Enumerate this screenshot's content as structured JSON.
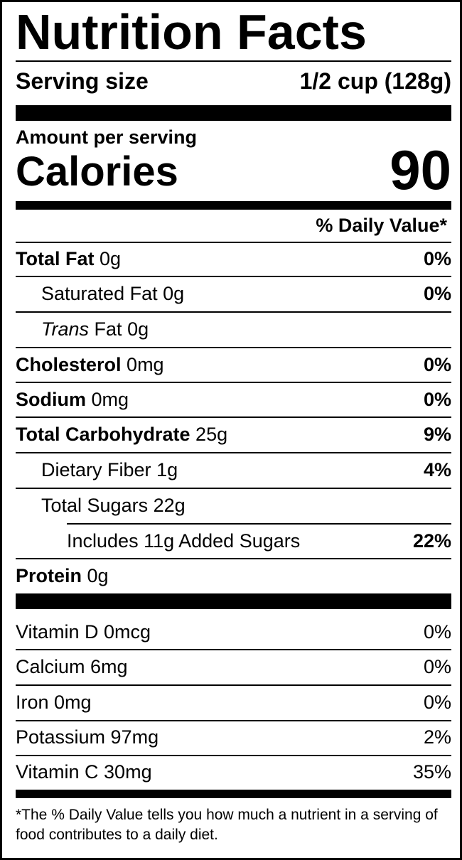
{
  "title": "Nutrition Facts",
  "serving": {
    "label": "Serving size",
    "value": "1/2 cup (128g)"
  },
  "amount_per_serving": "Amount per serving",
  "calories": {
    "label": "Calories",
    "value": "90"
  },
  "daily_value_header": "% Daily Value*",
  "nutrients": [
    {
      "name": "Total Fat",
      "amount": "0g",
      "dv": "0%"
    },
    {
      "name": "Saturated Fat",
      "amount": "0g",
      "dv": "0%"
    },
    {
      "name_italic": "Trans",
      "name": "Fat",
      "amount": "0g"
    },
    {
      "name": "Cholesterol",
      "amount": "0mg",
      "dv": "0%"
    },
    {
      "name": "Sodium",
      "amount": "0mg",
      "dv": "0%"
    },
    {
      "name": "Total Carbohydrate",
      "amount": "25g",
      "dv": "9%"
    },
    {
      "name": "Dietary Fiber",
      "amount": "1g",
      "dv": "4%"
    },
    {
      "name": "Total Sugars",
      "amount": "22g"
    },
    {
      "text": "Includes 11g Added Sugars",
      "dv": "22%"
    },
    {
      "name": "Protein",
      "amount": "0g"
    }
  ],
  "vitamins": [
    {
      "text": "Vitamin D 0mcg",
      "dv": "0%"
    },
    {
      "text": "Calcium 6mg",
      "dv": "0%"
    },
    {
      "text": "Iron 0mg",
      "dv": "0%"
    },
    {
      "text": "Potassium 97mg",
      "dv": "2%"
    },
    {
      "text": "Vitamin C 30mg",
      "dv": "35%"
    }
  ],
  "footnote": "*The % Daily Value tells you how much a nutrient in a serving of food contributes to a daily diet."
}
